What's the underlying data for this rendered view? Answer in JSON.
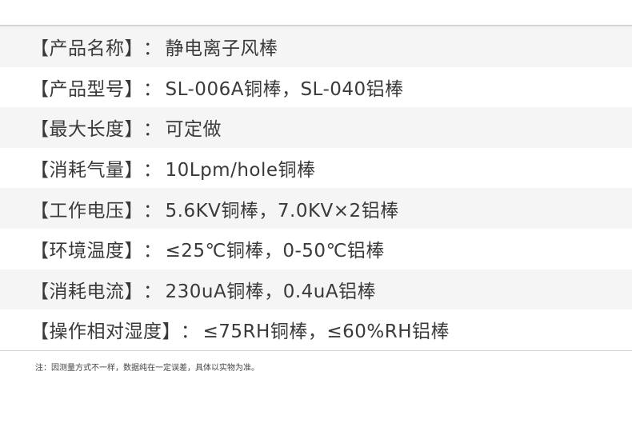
{
  "specs": [
    {
      "label": "【产品名称】",
      "value": "静电离子风棒"
    },
    {
      "label": "【产品型号】",
      "value": "SL-006A铜棒，SL-040铝棒"
    },
    {
      "label": "【最大长度】",
      "value": "可定做"
    },
    {
      "label": "【消耗气量】",
      "value": "10Lpm/hole铜棒"
    },
    {
      "label": "【工作电压】",
      "value": "5.6KV铜棒，7.0KV×2铝棒"
    },
    {
      "label": "【环境温度】",
      "value": "≤25℃铜棒，0-50℃铝棒"
    },
    {
      "label": "【消耗电流】",
      "value": "230uA铜棒，0.4uA铝棒"
    },
    {
      "label": "【操作相对湿度】",
      "value": "≤75RH铜棒，≤60%RH铝棒"
    }
  ],
  "separator": "：",
  "note": "注：因测量方式不一样，数据纯在一定误差，具体以实物为准。"
}
